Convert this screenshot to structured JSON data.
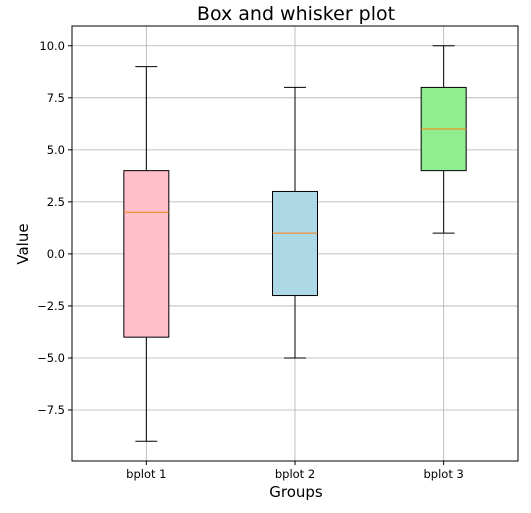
{
  "chart_data": {
    "type": "boxplot",
    "title": "Box and whisker plot",
    "xlabel": "Groups",
    "ylabel": "Value",
    "categories": [
      "bplot 1",
      "bplot 2",
      "bplot 3"
    ],
    "boxes": [
      {
        "label": "bplot 1",
        "min": -9,
        "q1": -4,
        "median": 2,
        "q3": 4,
        "max": 9,
        "color": "#ffc0cb"
      },
      {
        "label": "bplot 2",
        "min": -5,
        "q1": -2,
        "median": 1,
        "q3": 3,
        "max": 8,
        "color": "#add8e6"
      },
      {
        "label": "bplot 3",
        "min": 1,
        "q1": 4,
        "median": 6,
        "q3": 8,
        "max": 10,
        "color": "#90ee90"
      }
    ],
    "yticks": [
      -7.5,
      -5.0,
      -2.5,
      0.0,
      2.5,
      5.0,
      7.5,
      10.0
    ],
    "ytick_labels": [
      "−7.5",
      "−5.0",
      "−2.5",
      "0.0",
      "2.5",
      "5.0",
      "7.5",
      "10.0"
    ],
    "ylim": [
      -9.95,
      10.95
    ],
    "grid": true,
    "median_color": "#ff7f0e"
  }
}
